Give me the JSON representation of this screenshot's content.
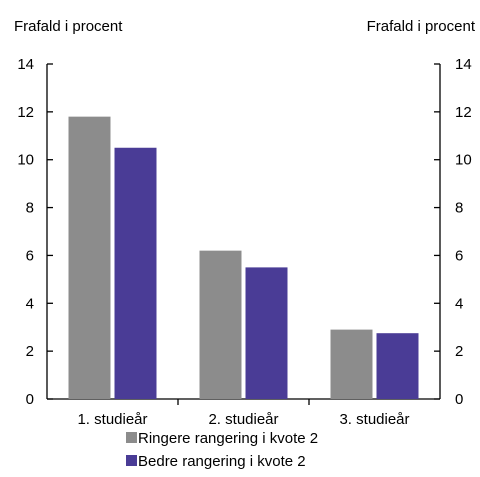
{
  "chart_data": {
    "type": "bar",
    "ylabel_left": "Frafald i procent",
    "ylabel_right": "Frafald i procent",
    "ylim": [
      0,
      14
    ],
    "yticks": [
      "0",
      "2",
      "4",
      "6",
      "8",
      "10",
      "12",
      "14"
    ],
    "categories": [
      "1. studieår",
      "2. studieår",
      "3. studieår"
    ],
    "series": [
      {
        "name": "Ringere rangering i kvote 2",
        "color": "#8c8c8c",
        "values": [
          11.8,
          6.2,
          2.9
        ]
      },
      {
        "name": "Bedre rangering i kvote 2",
        "color": "#4a3c96",
        "values": [
          10.5,
          5.5,
          2.75
        ]
      }
    ],
    "legend_position": "bottom",
    "grid": false
  }
}
